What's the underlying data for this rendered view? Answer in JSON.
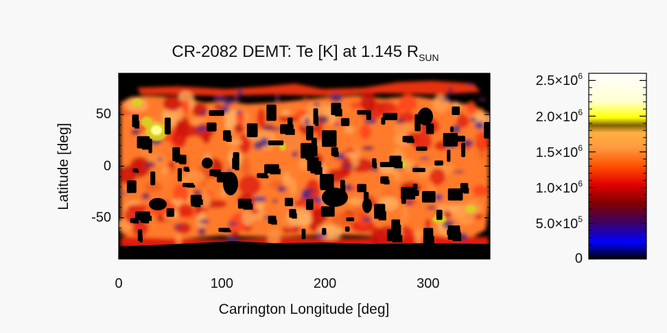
{
  "chart_data": {
    "type": "heatmap",
    "title_main": "CR-2082 DEMT: Te [K] at 1.145 R",
    "title_sub": "SUN",
    "xlabel": "Carrington Longitude [deg]",
    "ylabel": "Latitude [deg]",
    "xlim": [
      0,
      360
    ],
    "ylim": [
      -90,
      90
    ],
    "x_ticks": [
      "0",
      "100",
      "200",
      "300"
    ],
    "x_tick_values": [
      0,
      100,
      200,
      300
    ],
    "y_ticks": [
      "50",
      "0",
      "-50"
    ],
    "y_tick_values": [
      50,
      0,
      -50
    ],
    "colorbar": {
      "range": [
        0,
        2600000
      ],
      "tick_values": [
        0,
        500000,
        1000000,
        1500000,
        2000000,
        2500000
      ],
      "ticks": [
        {
          "mant": "0",
          "times": "",
          "exp": ""
        },
        {
          "mant": "5.0",
          "times": "×10",
          "exp": "5"
        },
        {
          "mant": "1.0",
          "times": "×10",
          "exp": "6"
        },
        {
          "mant": "1.5",
          "times": "×10",
          "exp": "6"
        },
        {
          "mant": "2.0",
          "times": "×10",
          "exp": "6"
        },
        {
          "mant": "2.5",
          "times": "×10",
          "exp": "6"
        }
      ],
      "colors": [
        "#000000",
        "#0000ff",
        "#400060",
        "#800000",
        "#e00000",
        "#ff5000",
        "#ff9a40",
        "#ffb040",
        "#806000",
        "#ffff00",
        "#ffffd0",
        "#ffffff"
      ],
      "color_stops": [
        0.0,
        0.09,
        0.2,
        0.3,
        0.4,
        0.5,
        0.6,
        0.68,
        0.72,
        0.76,
        0.85,
        1.0
      ]
    },
    "temperature_summary": {
      "typical_range_K": [
        1000000,
        1600000
      ],
      "masked_value": 0,
      "low_regions_K": 500000,
      "hot_spots_K": 2000000
    }
  }
}
